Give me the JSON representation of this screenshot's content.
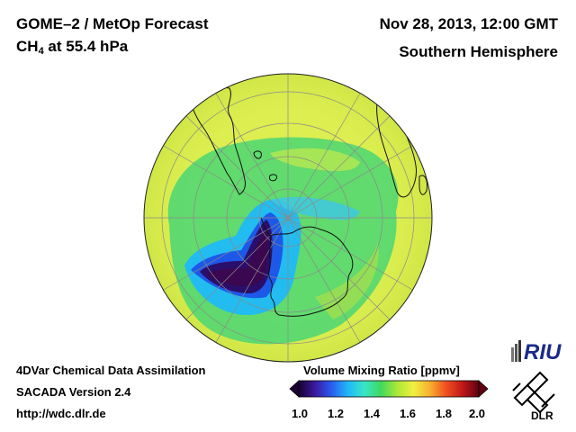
{
  "header": {
    "title_line1": "GOME–2 / MetOp Forecast",
    "species": "CH",
    "species_sub": "4",
    "level": " at 55.4 hPa",
    "date": "Nov 28, 2013, 12:00 GMT",
    "region": "Southern Hemisphere"
  },
  "footer": {
    "line1": "4DVar Chemical Data Assimilation",
    "line2": "SACADA Version 2.4",
    "line3": "http://wdc.dlr.de"
  },
  "colorbar": {
    "title": "Volume Mixing Ratio [ppmv]",
    "ticks": [
      "1.0",
      "1.2",
      "1.4",
      "1.6",
      "1.8",
      "2.0"
    ],
    "min": 1.0,
    "max": 2.0,
    "colors": [
      "#1a0033",
      "#3a1aa0",
      "#2a5cf0",
      "#20b8f8",
      "#38e6c8",
      "#40d860",
      "#a8e838",
      "#f0f040",
      "#f8b030",
      "#f05020",
      "#c01818",
      "#600010"
    ]
  },
  "logos": {
    "riu": "RIU",
    "dlr": "DLR"
  },
  "colors": {
    "ocean_field": "#d8ec4c",
    "mid_field": "#5adc6c",
    "low_field": "#1eb4f0",
    "very_low": "#3c0a5a"
  }
}
